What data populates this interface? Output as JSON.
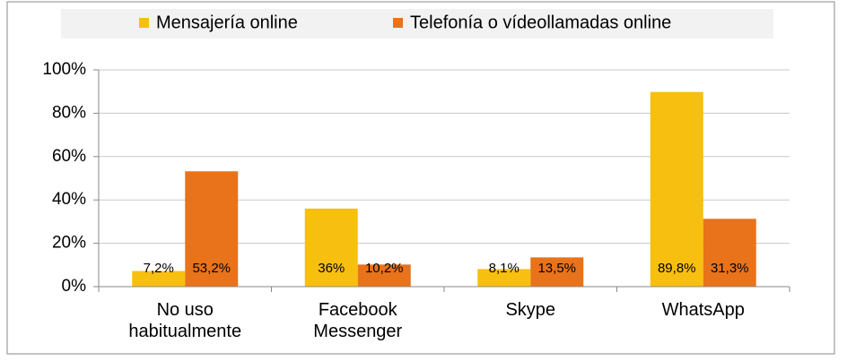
{
  "chart_data": {
    "type": "bar",
    "categories": [
      "No uso habitualmente",
      "Facebook Messenger",
      "Skype",
      "WhatsApp"
    ],
    "series": [
      {
        "name": "Mensajería online",
        "color": "#f7bf0f",
        "values": [
          7.2,
          36,
          8.1,
          89.8
        ],
        "value_labels": [
          "7,2%",
          "36%",
          "8,1%",
          "89,8%"
        ]
      },
      {
        "name": "Telefonía o vídeollamadas online",
        "color": "#e8731b",
        "values": [
          53.2,
          10.2,
          13.5,
          31.3
        ],
        "value_labels": [
          "53,2%",
          "10,2%",
          "13,5%",
          "31,3%"
        ]
      }
    ],
    "ylim": [
      0,
      100
    ],
    "yticks": [
      {
        "value": 0,
        "label": "0%"
      },
      {
        "value": 20,
        "label": "20%"
      },
      {
        "value": 40,
        "label": "40%"
      },
      {
        "value": 60,
        "label": "60%"
      },
      {
        "value": 80,
        "label": "80%"
      },
      {
        "value": 100,
        "label": "100%"
      }
    ],
    "grid": true,
    "legend": "top"
  }
}
